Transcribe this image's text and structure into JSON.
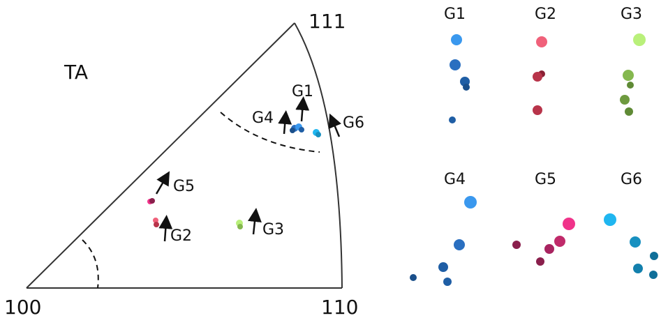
{
  "triangle": {
    "corner_100": "100",
    "corner_110": "110",
    "corner_111": "111",
    "side_label": "TA",
    "grain_labels": {
      "g1": "G1",
      "g2": "G2",
      "g3": "G3",
      "g4": "G4",
      "g5": "G5",
      "g6": "G6"
    }
  },
  "panels": {
    "g1": "G1",
    "g2": "G2",
    "g3": "G3",
    "g4": "G4",
    "g5": "G5",
    "g6": "G6"
  },
  "colors": {
    "g1": [
      "#3a98ee",
      "#2a6fc0",
      "#1f5ea5",
      "#1a4f8a"
    ],
    "g2": [
      "#f0617a",
      "#b8344a",
      "#8a2034"
    ],
    "g3": [
      "#b9f07a",
      "#85b84f",
      "#5f8a35",
      "#4a6e2a"
    ],
    "g4": [
      "#3a98ee",
      "#2a6fc0",
      "#1f5ea5"
    ],
    "g5": [
      "#f0338a",
      "#c02a6a",
      "#8a1f4c"
    ],
    "g6": [
      "#1fb6f0",
      "#1790c0",
      "#0f6f99"
    ]
  }
}
